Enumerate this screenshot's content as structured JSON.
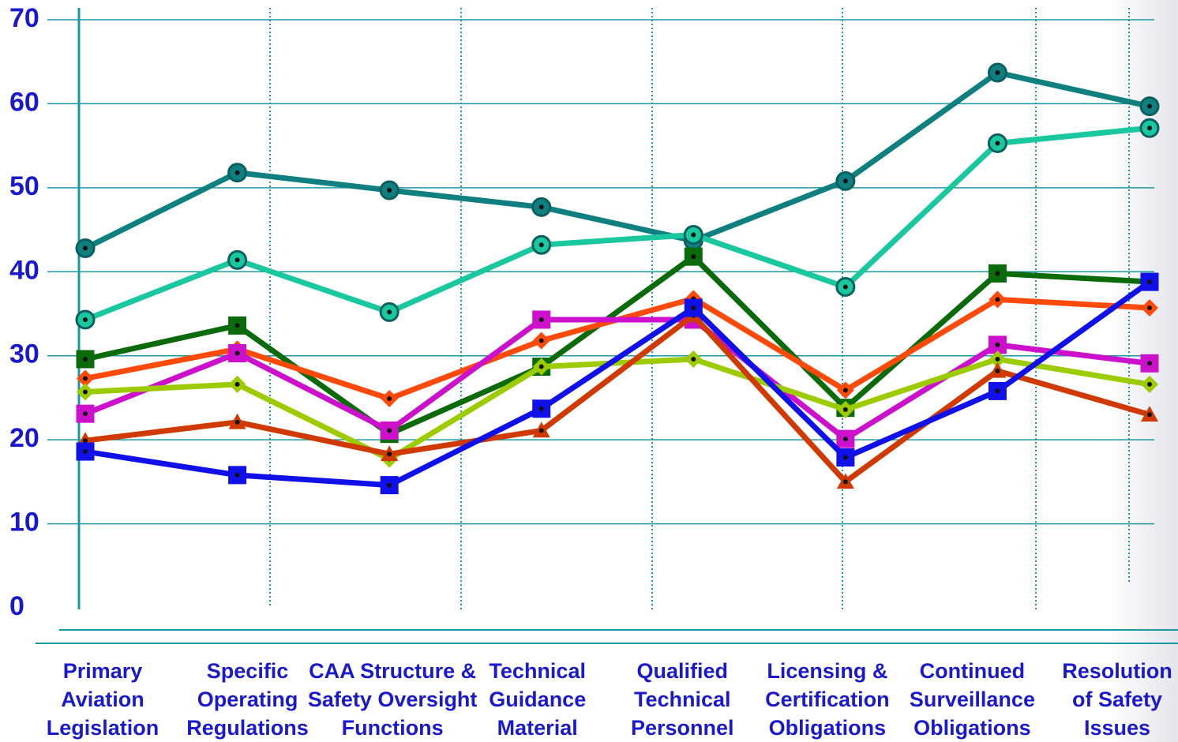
{
  "chart_data": {
    "type": "line",
    "categories": [
      "Primary Aviation Legislation",
      "Specific Operating Regulations",
      "CAA Structure & Safety Oversight Functions",
      "Technical Guidance Material",
      "Qualified Technical Personnel",
      "Licensing & Certification Obligations",
      "Continued Surveillance Obligations",
      "Resolution of Safety Issues"
    ],
    "series": [
      {
        "color": "#0f7f80",
        "marker": "circle",
        "values": [
          42.8,
          51.8,
          49.7,
          47.7,
          43.7,
          50.8,
          63.7,
          59.7
        ]
      },
      {
        "color": "#1ac8a0",
        "marker": "circle",
        "values": [
          34.3,
          41.4,
          35.2,
          43.2,
          44.4,
          38.2,
          55.3,
          57.1
        ]
      },
      {
        "color": "#0b6b0b",
        "marker": "square",
        "values": [
          29.6,
          33.6,
          20.7,
          28.7,
          41.8,
          23.8,
          39.8,
          38.8
        ]
      },
      {
        "color": "#ff4a0a",
        "marker": "diamond",
        "values": [
          27.3,
          30.8,
          24.9,
          31.8,
          36.8,
          25.9,
          36.7,
          35.7
        ]
      },
      {
        "color": "#cc10cc",
        "marker": "square",
        "values": [
          23.1,
          30.3,
          21.1,
          34.3,
          34.3,
          20.1,
          31.3,
          29.1
        ]
      },
      {
        "color": "#9ccc00",
        "marker": "diamond",
        "values": [
          25.7,
          26.6,
          17.7,
          28.7,
          29.6,
          23.6,
          29.6,
          26.6
        ]
      },
      {
        "color": "#d03a00",
        "marker": "triangle",
        "values": [
          19.9,
          22.1,
          18.3,
          21.1,
          34.8,
          15.0,
          28.2,
          23.0
        ]
      },
      {
        "color": "#1010e8",
        "marker": "square",
        "values": [
          18.6,
          15.8,
          14.6,
          23.7,
          35.7,
          17.9,
          25.8,
          38.8
        ]
      }
    ],
    "ylim": [
      0,
      70
    ],
    "yticks": [
      0,
      10,
      20,
      30,
      40,
      50,
      60,
      70
    ],
    "grid": true
  }
}
